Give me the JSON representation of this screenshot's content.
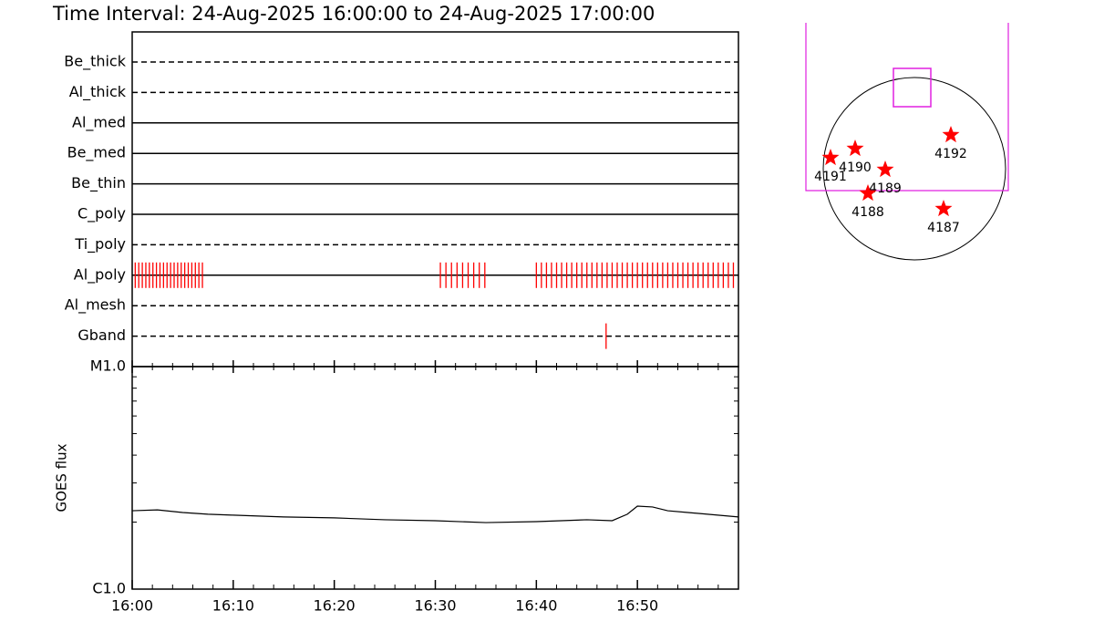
{
  "chart_data": {
    "type": "timeline",
    "title": "Time Interval: 24-Aug-2025 16:00:00 to 24-Aug-2025 17:00:00",
    "xlim": [
      0,
      60
    ],
    "xticks": [
      {
        "value": 0,
        "label": "16:00"
      },
      {
        "value": 10,
        "label": "16:10"
      },
      {
        "value": 20,
        "label": "16:20"
      },
      {
        "value": 30,
        "label": "16:30"
      },
      {
        "value": 40,
        "label": "16:40"
      },
      {
        "value": 50,
        "label": "16:50"
      }
    ],
    "xminorticks": [
      2,
      4,
      6,
      8,
      12,
      14,
      16,
      18,
      22,
      24,
      26,
      28,
      32,
      34,
      36,
      38,
      42,
      44,
      46,
      48,
      52,
      54,
      56,
      58
    ],
    "mark_color": "#ff0000",
    "rows": [
      {
        "name": "Be_thick",
        "line": "dashed",
        "x": []
      },
      {
        "name": "Al_thick",
        "line": "dashed",
        "x": []
      },
      {
        "name": "Al_med",
        "line": "solid",
        "x": []
      },
      {
        "name": "Be_med",
        "line": "solid",
        "x": []
      },
      {
        "name": "Be_thin",
        "line": "solid",
        "x": []
      },
      {
        "name": "C_poly",
        "line": "solid",
        "x": []
      },
      {
        "name": "Ti_poly",
        "line": "dashed",
        "x": []
      },
      {
        "name": "Al_poly",
        "line": "solid",
        "x": [
          0.3,
          0.65,
          1.0,
          1.35,
          1.7,
          2.05,
          2.4,
          2.75,
          3.1,
          3.45,
          3.8,
          4.15,
          4.5,
          4.85,
          5.2,
          5.55,
          5.9,
          6.25,
          6.6,
          6.95,
          30.5,
          31.05,
          31.6,
          32.15,
          32.7,
          33.25,
          33.8,
          34.35,
          34.9,
          40.0,
          40.5,
          41.0,
          41.5,
          42.0,
          42.5,
          43.0,
          43.5,
          44.0,
          44.5,
          45.0,
          45.5,
          46.0,
          46.5,
          47.0,
          47.5,
          48.0,
          48.5,
          49.0,
          49.5,
          50.0,
          50.5,
          51.0,
          51.5,
          52.0,
          52.5,
          53.0,
          53.5,
          54.0,
          54.5,
          55.0,
          55.5,
          56.0,
          56.5,
          57.0,
          57.5,
          58.0,
          58.5,
          59.0,
          59.5
        ]
      },
      {
        "name": "Al_mesh",
        "line": "dashed",
        "x": []
      },
      {
        "name": "Gband",
        "line": "dashed",
        "x": [
          46.9
        ]
      }
    ],
    "flux": {
      "type": "line",
      "ylabel": "GOES flux",
      "log": true,
      "color": "#000000",
      "ylim": [
        1e-06,
        1e-05
      ],
      "yticks": [
        {
          "value": 1e-06,
          "label": "C1.0"
        },
        {
          "value": 1e-05,
          "label": "M1.0"
        }
      ],
      "yminorticks": [
        2e-06,
        3e-06,
        4e-06,
        5e-06,
        6e-06,
        7e-06,
        8e-06,
        9e-06
      ],
      "x": [
        0,
        2.5,
        5,
        7.5,
        10,
        15,
        20,
        25,
        30,
        35,
        40,
        45,
        47.5,
        49,
        50,
        51.5,
        53,
        55,
        60
      ],
      "values": [
        2.25e-06,
        2.27e-06,
        2.21e-06,
        2.17e-06,
        2.15e-06,
        2.11e-06,
        2.09e-06,
        2.05e-06,
        2.03e-06,
        1.99e-06,
        2.01e-06,
        2.05e-06,
        2.03e-06,
        2.17e-06,
        2.36e-06,
        2.34e-06,
        2.25e-06,
        2.21e-06,
        2.11e-06
      ]
    }
  },
  "sun_map": {
    "regions": [
      "4192",
      "4190",
      "4191",
      "4189",
      "4188",
      "4187"
    ]
  }
}
